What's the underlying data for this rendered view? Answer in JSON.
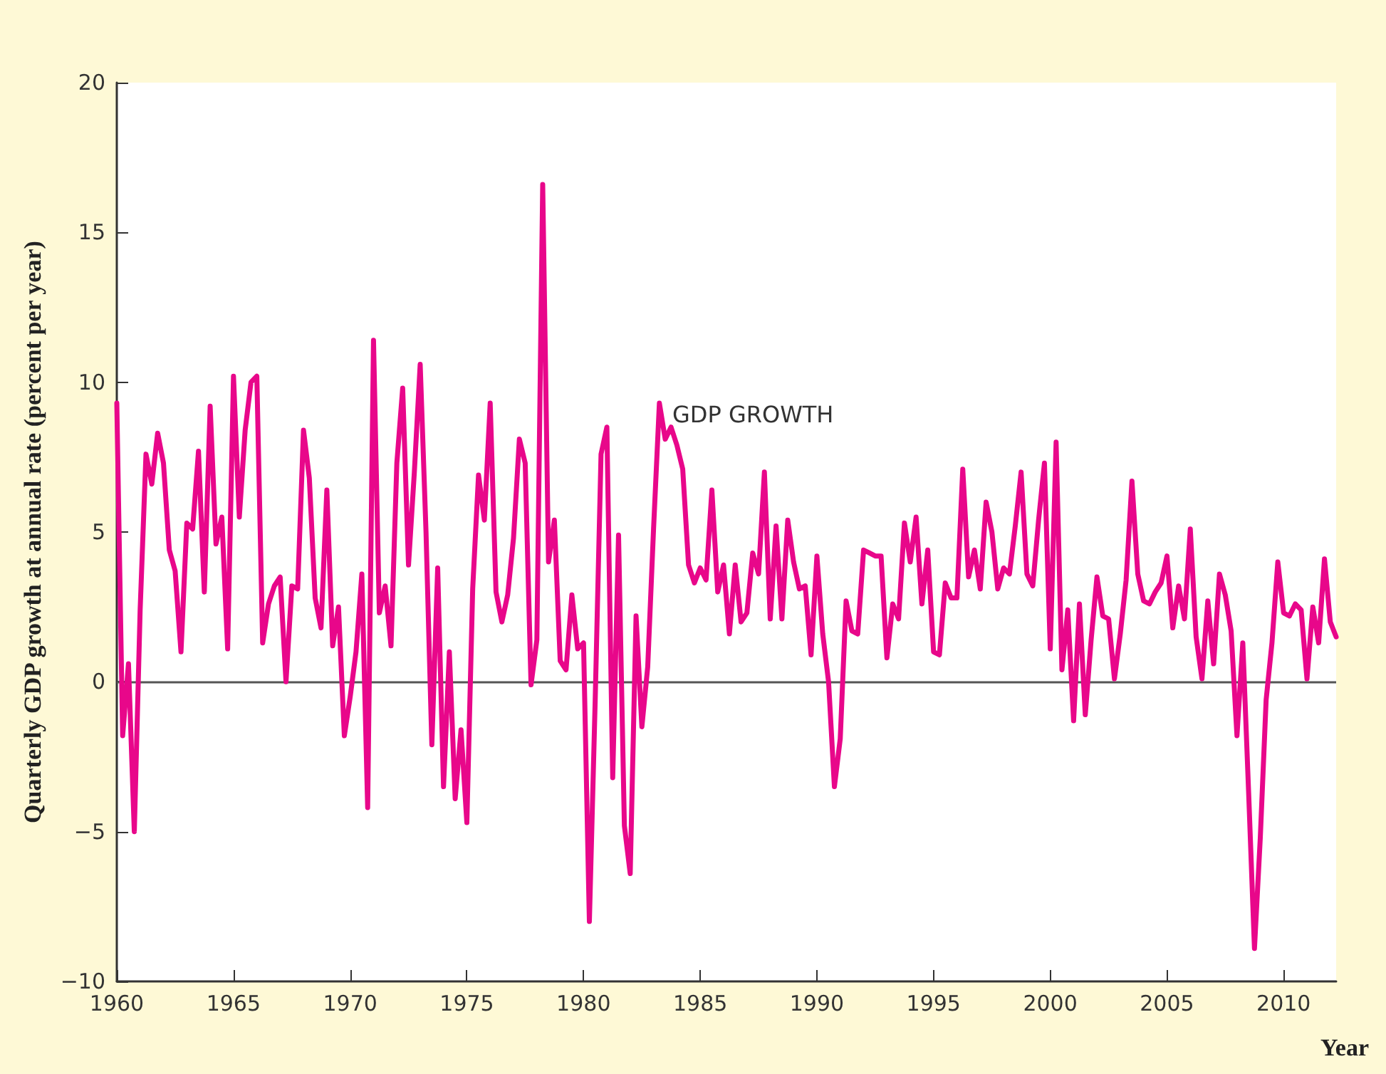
{
  "chart_data": {
    "type": "line",
    "xlabel": "Year",
    "ylabel": "Quarterly GDP growth at annual rate (percent per year)",
    "annotations": [
      "GDP GROWTH"
    ],
    "x": [
      1960,
      1960.25,
      1960.5,
      1960.75,
      1961,
      1961.25,
      1961.5,
      1961.75,
      1962,
      1962.25,
      1962.5,
      1962.75,
      1963,
      1963.25,
      1963.5,
      1963.75,
      1964,
      1964.25,
      1964.5,
      1964.75,
      1965,
      1965.25,
      1965.5,
      1965.75,
      1966,
      1966.25,
      1966.5,
      1966.75,
      1967,
      1967.25,
      1967.5,
      1967.75,
      1968,
      1968.25,
      1968.5,
      1968.75,
      1969,
      1969.25,
      1969.5,
      1969.75,
      1970,
      1970.25,
      1970.5,
      1970.75,
      1971,
      1971.25,
      1971.5,
      1971.75,
      1972,
      1972.25,
      1972.5,
      1972.75,
      1973,
      1973.25,
      1973.5,
      1973.75,
      1974,
      1974.25,
      1974.5,
      1974.75,
      1975,
      1975.25,
      1975.5,
      1975.75,
      1976,
      1976.25,
      1976.5,
      1976.75,
      1977,
      1977.25,
      1977.5,
      1977.75,
      1978,
      1978.25,
      1978.5,
      1978.75,
      1979,
      1979.25,
      1979.5,
      1979.75,
      1980,
      1980.25,
      1980.5,
      1980.75,
      1981,
      1981.25,
      1981.5,
      1981.75,
      1982,
      1982.25,
      1982.5,
      1982.75,
      1983,
      1983.25,
      1983.5,
      1983.75,
      1984,
      1984.25,
      1984.5,
      1984.75,
      1985,
      1985.25,
      1985.5,
      1985.75,
      1986,
      1986.25,
      1986.5,
      1986.75,
      1987,
      1987.25,
      1987.5,
      1987.75,
      1988,
      1988.25,
      1988.5,
      1988.75,
      1989,
      1989.25,
      1989.5,
      1989.75,
      1990,
      1990.25,
      1990.5,
      1990.75,
      1991,
      1991.25,
      1991.5,
      1991.75,
      1992,
      1992.25,
      1992.5,
      1992.75,
      1993,
      1993.25,
      1993.5,
      1993.75,
      1994,
      1994.25,
      1994.5,
      1994.75,
      1995,
      1995.25,
      1995.5,
      1995.75,
      1996,
      1996.25,
      1996.5,
      1996.75,
      1997,
      1997.25,
      1997.5,
      1997.75,
      1998,
      1998.25,
      1998.5,
      1998.75,
      1999,
      1999.25,
      1999.5,
      1999.75,
      2000,
      2000.25,
      2000.5,
      2000.75,
      2001,
      2001.25,
      2001.5,
      2001.75,
      2002,
      2002.25,
      2002.5,
      2002.75,
      2003,
      2003.25,
      2003.5,
      2003.75,
      2004,
      2004.25,
      2004.5,
      2004.75,
      2005,
      2005.25,
      2005.5,
      2005.75,
      2006,
      2006.25,
      2006.5,
      2006.75,
      2007,
      2007.25,
      2007.5,
      2007.75,
      2008,
      2008.25,
      2008.5,
      2008.75,
      2009,
      2009.25,
      2009.5,
      2009.75,
      2010,
      2010.25,
      2010.5,
      2010.75,
      2011,
      2011.25,
      2011.5,
      2011.75,
      2012,
      2012.25
    ],
    "series": [
      {
        "color": "#e8078a",
        "values": [
          9.3,
          -1.8,
          0.6,
          -5.0,
          2.4,
          7.6,
          6.6,
          8.3,
          7.3,
          4.4,
          3.7,
          1.0,
          5.3,
          5.1,
          7.7,
          3.0,
          9.2,
          4.6,
          5.5,
          1.1,
          10.2,
          5.5,
          8.4,
          10.0,
          10.2,
          1.3,
          2.6,
          3.2,
          3.5,
          0.0,
          3.2,
          3.1,
          8.4,
          6.8,
          2.8,
          1.8,
          6.4,
          1.2,
          2.5,
          -1.8,
          -0.5,
          1.0,
          3.6,
          -4.2,
          11.4,
          2.3,
          3.2,
          1.2,
          7.3,
          9.8,
          3.9,
          7.0,
          10.6,
          5.0,
          -2.1,
          3.8,
          -3.5,
          1.0,
          -3.9,
          -1.6,
          -4.7,
          3.1,
          6.9,
          5.4,
          9.3,
          3.0,
          2.0,
          2.9,
          4.8,
          8.1,
          7.3,
          -0.1,
          1.4,
          16.6,
          4.0,
          5.4,
          0.7,
          0.4,
          2.9,
          1.1,
          1.3,
          -8.0,
          -0.6,
          7.6,
          8.5,
          -3.2,
          4.9,
          -4.8,
          -6.4,
          2.2,
          -1.5,
          0.5,
          5.1,
          9.3,
          8.1,
          8.5,
          7.9,
          7.1,
          3.9,
          3.3,
          3.8,
          3.4,
          6.4,
          3.0,
          3.9,
          1.6,
          3.9,
          2.0,
          2.3,
          4.3,
          3.6,
          7.0,
          2.1,
          5.2,
          2.1,
          5.4,
          4.0,
          3.1,
          3.2,
          0.9,
          4.2,
          1.6,
          0.0,
          -3.5,
          -1.9,
          2.7,
          1.7,
          1.6,
          4.4,
          4.3,
          4.2,
          4.2,
          0.8,
          2.6,
          2.1,
          5.3,
          4.0,
          5.5,
          2.6,
          4.4,
          1.0,
          0.9,
          3.3,
          2.8,
          2.8,
          7.1,
          3.5,
          4.4,
          3.1,
          6.0,
          5.0,
          3.1,
          3.8,
          3.6,
          5.2,
          7.0,
          3.6,
          3.2,
          5.4,
          7.3,
          1.1,
          8.0,
          0.4,
          2.4,
          -1.3,
          2.6,
          -1.1,
          1.4,
          3.5,
          2.2,
          2.1,
          0.1,
          1.6,
          3.4,
          6.7,
          3.6,
          2.7,
          2.6,
          3.0,
          3.3,
          4.2,
          1.8,
          3.2,
          2.1,
          5.1,
          1.5,
          0.1,
          2.7,
          0.6,
          3.6,
          2.9,
          1.7,
          -1.8,
          1.3,
          -3.7,
          -8.9,
          -5.2,
          -0.6,
          1.3,
          4.0,
          2.3,
          2.2,
          2.6,
          2.4,
          0.1,
          2.5,
          1.3,
          4.1,
          2.0,
          1.5
        ]
      }
    ],
    "xlim": [
      1960,
      2012.25
    ],
    "xticks": [
      1960,
      1965,
      1970,
      1975,
      1980,
      1985,
      1990,
      1995,
      2000,
      2005,
      2010
    ],
    "ylim": [
      -10,
      20
    ],
    "yticks": [
      {
        "value": -10,
        "label": "−10"
      },
      {
        "value": -5,
        "label": "−5"
      },
      0,
      5,
      10,
      15,
      20
    ],
    "ref_lines": [
      {
        "axis": "y",
        "value": 0,
        "color": "#555555"
      }
    ],
    "grid": false,
    "marker": "none",
    "line_style": "solid"
  }
}
